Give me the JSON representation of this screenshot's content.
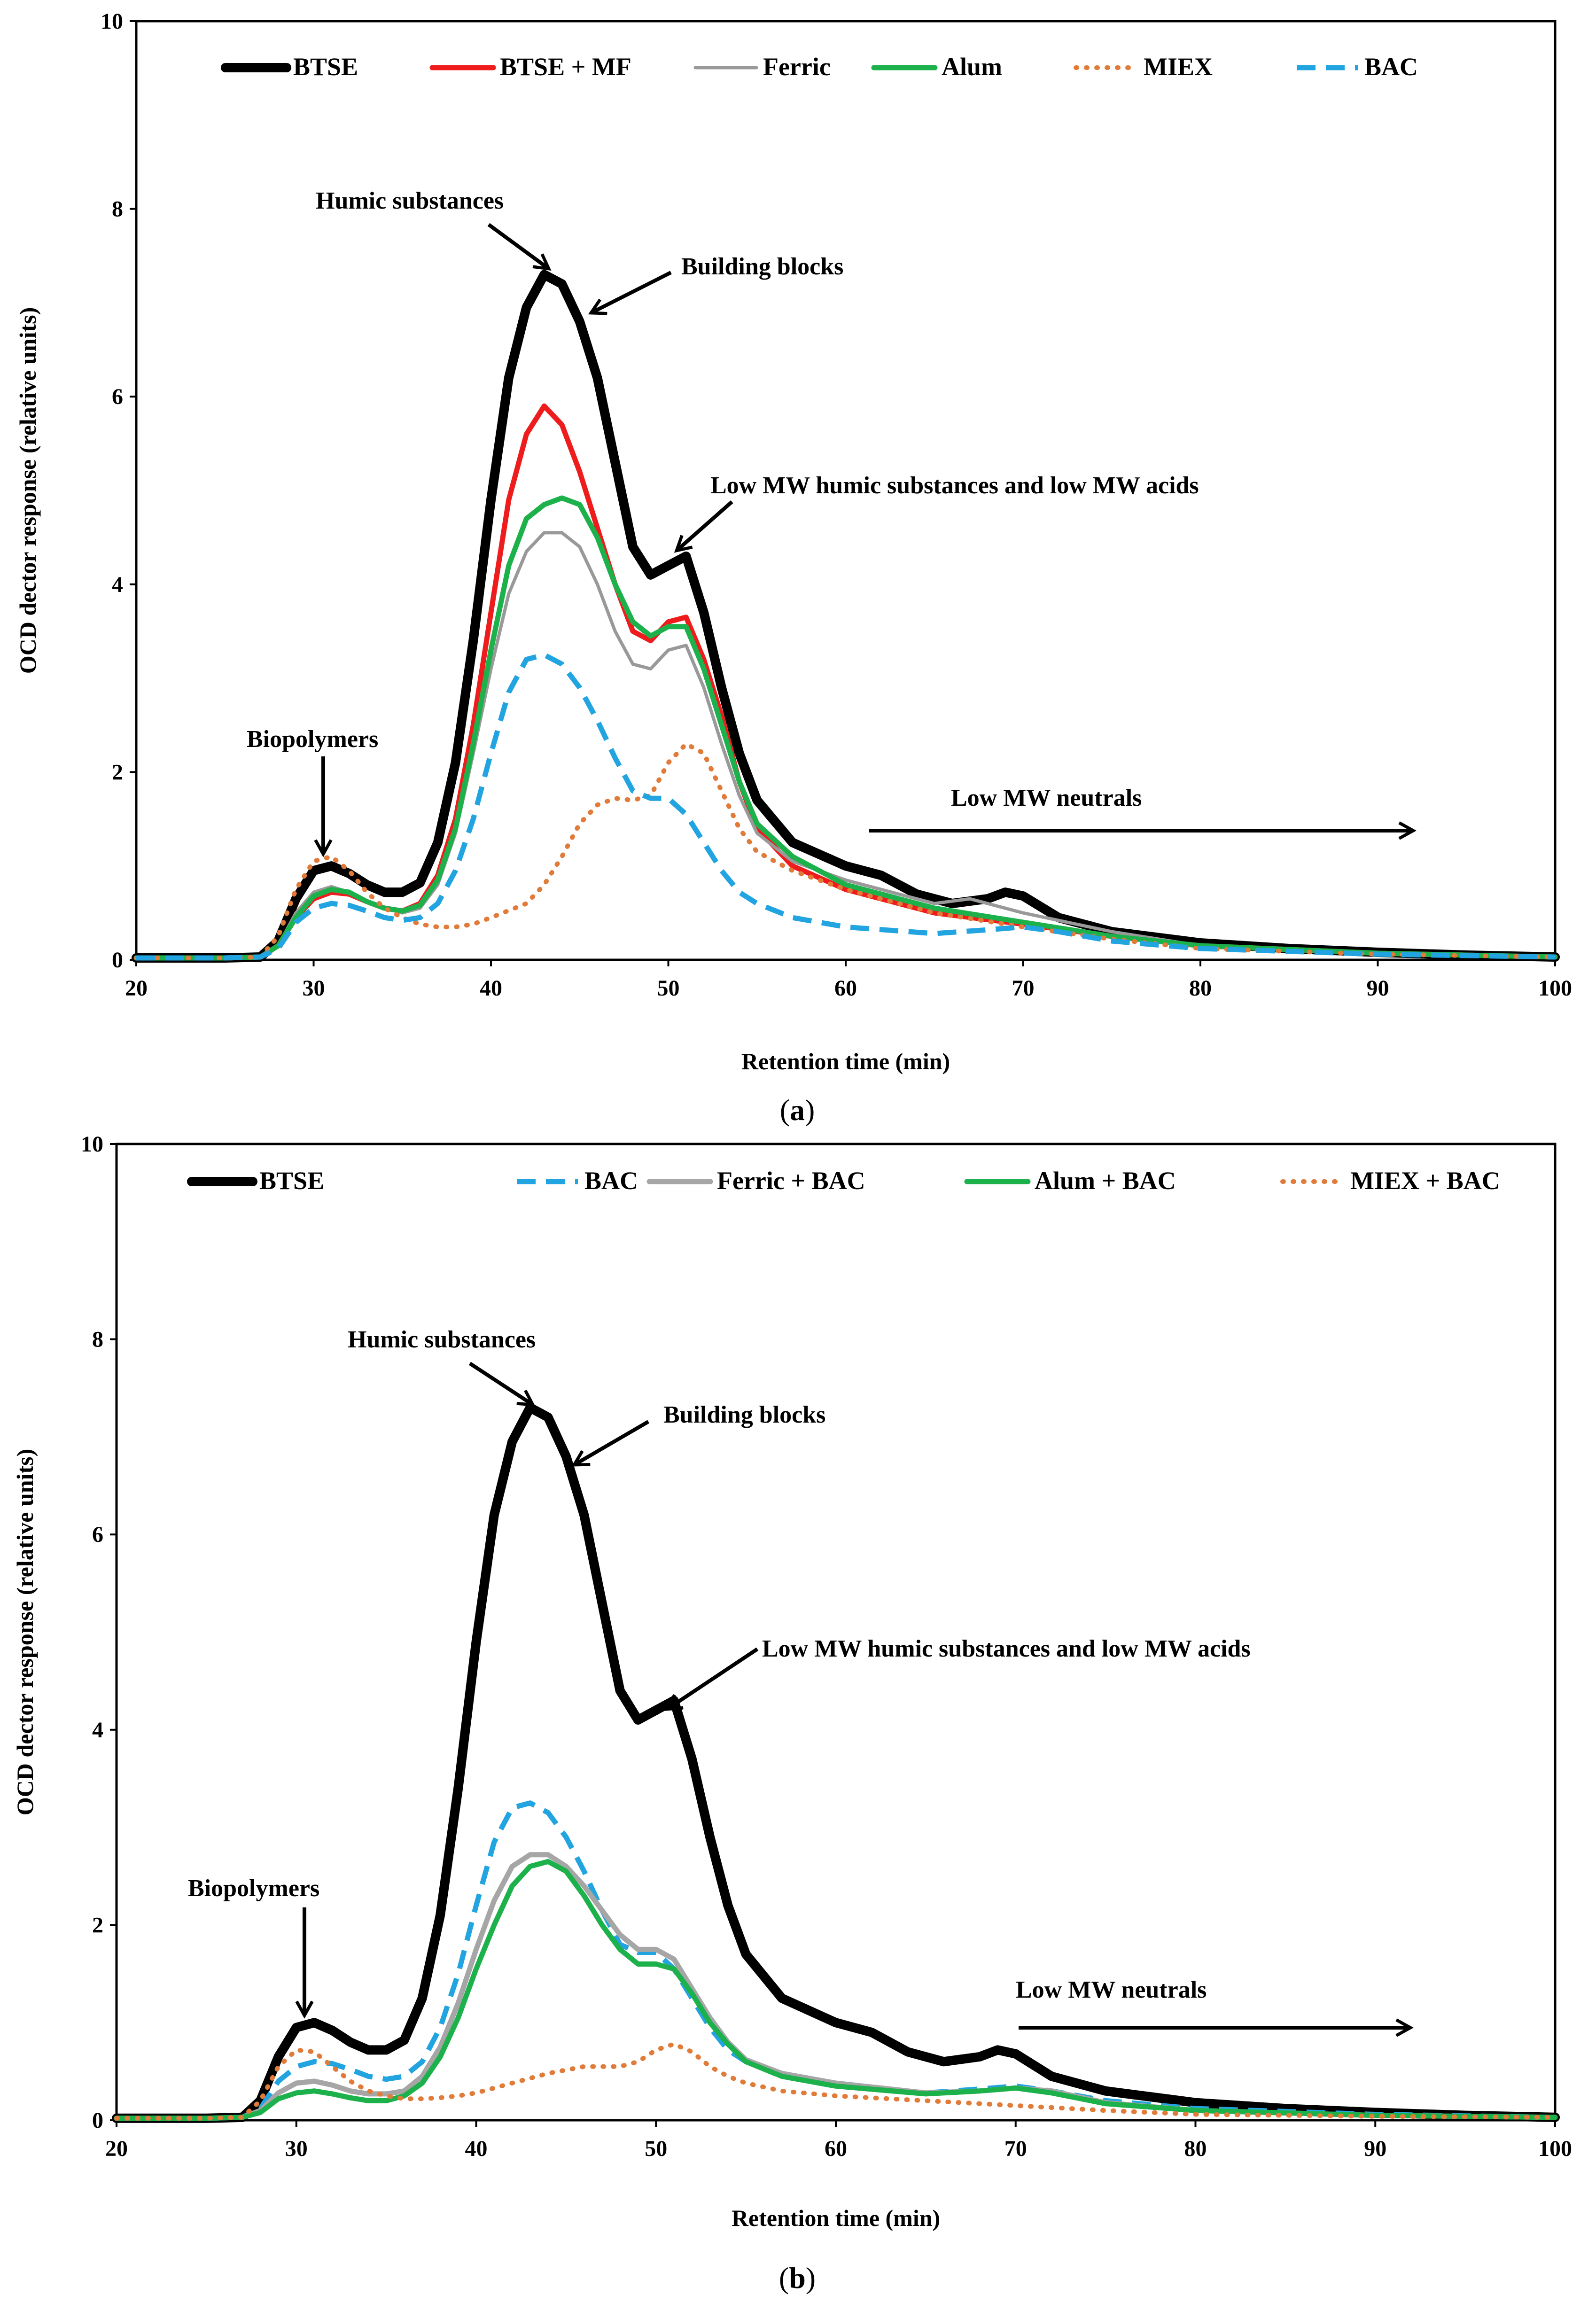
{
  "chart_data": [
    {
      "panel_label": "a",
      "type": "line",
      "xlabel": "Retention time (min)",
      "ylabel": "OCD dector response (relative units)",
      "xlim": [
        20,
        100
      ],
      "ylim": [
        0,
        10
      ],
      "xticks": [
        20,
        30,
        40,
        50,
        60,
        70,
        80,
        90,
        100
      ],
      "yticks": [
        0,
        2,
        4,
        6,
        8,
        10
      ],
      "grid": false,
      "legend_position": "top",
      "series": [
        {
          "name": "BTSE",
          "color": "#000000",
          "style": "solid-thick",
          "x": [
            20,
            25,
            27,
            28,
            29,
            30,
            31,
            32,
            33,
            34,
            35,
            36,
            37,
            38,
            39,
            40,
            41,
            42,
            43,
            44,
            45,
            46,
            47,
            48,
            49,
            50,
            51,
            52,
            53,
            54,
            55,
            57,
            60,
            62,
            64,
            66,
            68,
            69,
            70,
            72,
            75,
            80,
            85,
            90,
            95,
            100
          ],
          "y": [
            0.02,
            0.02,
            0.03,
            0.2,
            0.65,
            0.95,
            1.0,
            0.92,
            0.8,
            0.72,
            0.72,
            0.82,
            1.25,
            2.1,
            3.4,
            4.9,
            6.2,
            6.95,
            7.3,
            7.2,
            6.8,
            6.2,
            5.3,
            4.4,
            4.1,
            4.2,
            4.3,
            3.7,
            2.9,
            2.2,
            1.7,
            1.25,
            1.0,
            0.9,
            0.7,
            0.6,
            0.65,
            0.72,
            0.68,
            0.45,
            0.3,
            0.18,
            0.12,
            0.08,
            0.05,
            0.03
          ]
        },
        {
          "name": "BTSE + MF",
          "color": "#ee1c1c",
          "style": "solid",
          "x": [
            20,
            25,
            27,
            28,
            29,
            30,
            31,
            32,
            33,
            34,
            35,
            36,
            37,
            38,
            39,
            40,
            41,
            42,
            43,
            44,
            45,
            46,
            47,
            48,
            49,
            50,
            51,
            52,
            53,
            54,
            55,
            57,
            60,
            65,
            70,
            75,
            80,
            90,
            100
          ],
          "y": [
            0.02,
            0.02,
            0.03,
            0.15,
            0.45,
            0.65,
            0.72,
            0.7,
            0.62,
            0.55,
            0.52,
            0.6,
            0.9,
            1.5,
            2.5,
            3.7,
            4.9,
            5.6,
            5.9,
            5.7,
            5.2,
            4.6,
            4.0,
            3.5,
            3.4,
            3.6,
            3.65,
            3.2,
            2.6,
            1.9,
            1.4,
            1.0,
            0.75,
            0.5,
            0.38,
            0.25,
            0.15,
            0.07,
            0.03
          ]
        },
        {
          "name": "Ferric",
          "color": "#999999",
          "style": "solid-thin",
          "x": [
            20,
            25,
            27,
            28,
            29,
            30,
            31,
            32,
            33,
            34,
            35,
            36,
            37,
            38,
            39,
            40,
            41,
            42,
            43,
            44,
            45,
            46,
            47,
            48,
            49,
            50,
            51,
            52,
            53,
            54,
            55,
            57,
            60,
            65,
            67,
            70,
            75,
            80,
            90,
            100
          ],
          "y": [
            0.02,
            0.02,
            0.03,
            0.15,
            0.5,
            0.72,
            0.78,
            0.72,
            0.62,
            0.55,
            0.5,
            0.55,
            0.8,
            1.35,
            2.2,
            3.1,
            3.9,
            4.35,
            4.55,
            4.55,
            4.4,
            4.0,
            3.5,
            3.15,
            3.1,
            3.3,
            3.35,
            2.9,
            2.3,
            1.75,
            1.35,
            1.05,
            0.85,
            0.6,
            0.65,
            0.5,
            0.3,
            0.15,
            0.07,
            0.03
          ]
        },
        {
          "name": "Alum",
          "color": "#1db14b",
          "style": "solid",
          "x": [
            20,
            25,
            27,
            28,
            29,
            30,
            31,
            32,
            33,
            34,
            35,
            36,
            37,
            38,
            39,
            40,
            41,
            42,
            43,
            44,
            45,
            46,
            47,
            48,
            49,
            50,
            51,
            52,
            53,
            54,
            55,
            57,
            60,
            65,
            70,
            75,
            80,
            90,
            100
          ],
          "y": [
            0.02,
            0.02,
            0.03,
            0.15,
            0.45,
            0.68,
            0.75,
            0.72,
            0.62,
            0.55,
            0.52,
            0.58,
            0.85,
            1.4,
            2.3,
            3.3,
            4.2,
            4.7,
            4.85,
            4.92,
            4.85,
            4.5,
            4.0,
            3.6,
            3.45,
            3.55,
            3.55,
            3.1,
            2.5,
            1.9,
            1.45,
            1.1,
            0.8,
            0.55,
            0.4,
            0.25,
            0.15,
            0.07,
            0.03
          ]
        },
        {
          "name": "MIEX",
          "color": "#e07b39",
          "style": "dotted",
          "x": [
            20,
            25,
            27,
            28,
            29,
            30,
            31,
            32,
            33,
            34,
            35,
            36,
            37,
            38,
            39,
            40,
            42,
            43,
            44,
            45,
            46,
            47,
            48,
            49,
            50,
            51,
            52,
            53,
            54,
            55,
            57,
            60,
            65,
            70,
            75,
            80,
            90,
            100
          ],
          "y": [
            0.02,
            0.02,
            0.03,
            0.25,
            0.75,
            1.05,
            1.1,
            0.95,
            0.72,
            0.55,
            0.45,
            0.38,
            0.35,
            0.35,
            0.38,
            0.45,
            0.6,
            0.8,
            1.1,
            1.45,
            1.65,
            1.72,
            1.7,
            1.75,
            2.1,
            2.3,
            2.2,
            1.8,
            1.4,
            1.15,
            0.95,
            0.75,
            0.5,
            0.35,
            0.22,
            0.12,
            0.06,
            0.03
          ]
        },
        {
          "name": "BAC",
          "color": "#21a4e0",
          "style": "dashed",
          "x": [
            20,
            25,
            27,
            28,
            29,
            30,
            31,
            32,
            33,
            34,
            35,
            36,
            37,
            38,
            39,
            40,
            41,
            42,
            43,
            44,
            45,
            46,
            47,
            48,
            49,
            50,
            51,
            52,
            53,
            54,
            55,
            57,
            60,
            65,
            68,
            70,
            72,
            75,
            80,
            90,
            100
          ],
          "y": [
            0.02,
            0.02,
            0.03,
            0.12,
            0.4,
            0.55,
            0.6,
            0.58,
            0.52,
            0.45,
            0.42,
            0.45,
            0.6,
            0.95,
            1.5,
            2.2,
            2.85,
            3.2,
            3.25,
            3.15,
            2.9,
            2.55,
            2.15,
            1.8,
            1.72,
            1.72,
            1.55,
            1.25,
            0.95,
            0.72,
            0.6,
            0.45,
            0.35,
            0.28,
            0.32,
            0.35,
            0.3,
            0.2,
            0.12,
            0.06,
            0.03
          ]
        }
      ],
      "annotations": [
        {
          "text": "Biopolymers",
          "x": 30.5,
          "y": 1.0
        },
        {
          "text": "Humic substances",
          "x": 43.3,
          "y": 7.3
        },
        {
          "text": "Building blocks",
          "x": 45.5,
          "y": 6.8
        },
        {
          "text": "Low MW humic substances and low MW acids",
          "x": 50.5,
          "y": 4.3
        },
        {
          "text": "Low MW neutrals",
          "x": 61.5,
          "y": 1.4
        }
      ]
    },
    {
      "panel_label": "b",
      "type": "line",
      "xlabel": "Retention time (min)",
      "ylabel": "OCD dector response (relative units)",
      "xlim": [
        20,
        100
      ],
      "ylim": [
        0,
        10
      ],
      "xticks": [
        20,
        30,
        40,
        50,
        60,
        70,
        80,
        90,
        100
      ],
      "yticks": [
        0,
        2,
        4,
        6,
        8,
        10
      ],
      "grid": false,
      "legend_position": "top",
      "series": [
        {
          "name": "BTSE",
          "color": "#000000",
          "style": "solid-thick",
          "x": [
            20,
            25,
            27,
            28,
            29,
            30,
            31,
            32,
            33,
            34,
            35,
            36,
            37,
            38,
            39,
            40,
            41,
            42,
            43,
            44,
            45,
            46,
            47,
            48,
            49,
            50,
            51,
            52,
            53,
            54,
            55,
            57,
            60,
            62,
            64,
            66,
            68,
            69,
            70,
            72,
            75,
            80,
            85,
            90,
            95,
            100
          ],
          "y": [
            0.02,
            0.02,
            0.03,
            0.2,
            0.65,
            0.95,
            1.0,
            0.92,
            0.8,
            0.72,
            0.72,
            0.82,
            1.25,
            2.1,
            3.4,
            4.9,
            6.2,
            6.95,
            7.3,
            7.2,
            6.8,
            6.2,
            5.3,
            4.4,
            4.1,
            4.2,
            4.3,
            3.7,
            2.9,
            2.2,
            1.7,
            1.25,
            1.0,
            0.9,
            0.7,
            0.6,
            0.65,
            0.72,
            0.68,
            0.45,
            0.3,
            0.18,
            0.12,
            0.08,
            0.05,
            0.03
          ]
        },
        {
          "name": "BAC",
          "color": "#21a4e0",
          "style": "dashed",
          "x": [
            20,
            25,
            27,
            28,
            29,
            30,
            31,
            32,
            33,
            34,
            35,
            36,
            37,
            38,
            39,
            40,
            41,
            42,
            43,
            44,
            45,
            46,
            47,
            48,
            49,
            50,
            51,
            52,
            53,
            54,
            55,
            57,
            60,
            65,
            68,
            70,
            72,
            75,
            80,
            90,
            100
          ],
          "y": [
            0.02,
            0.02,
            0.03,
            0.12,
            0.4,
            0.55,
            0.6,
            0.58,
            0.52,
            0.45,
            0.42,
            0.45,
            0.6,
            0.95,
            1.5,
            2.2,
            2.85,
            3.2,
            3.25,
            3.15,
            2.9,
            2.55,
            2.15,
            1.8,
            1.72,
            1.72,
            1.55,
            1.25,
            0.95,
            0.72,
            0.6,
            0.45,
            0.35,
            0.28,
            0.32,
            0.35,
            0.3,
            0.2,
            0.12,
            0.06,
            0.03
          ]
        },
        {
          "name": "Ferric + BAC",
          "color": "#a6a6a6",
          "style": "solid",
          "x": [
            20,
            25,
            27,
            28,
            29,
            30,
            31,
            32,
            33,
            34,
            35,
            36,
            37,
            38,
            39,
            40,
            41,
            42,
            43,
            44,
            45,
            46,
            47,
            48,
            49,
            50,
            51,
            52,
            53,
            54,
            55,
            57,
            60,
            65,
            68,
            70,
            72,
            75,
            80,
            90,
            100
          ],
          "y": [
            0.02,
            0.02,
            0.03,
            0.1,
            0.28,
            0.38,
            0.4,
            0.36,
            0.3,
            0.27,
            0.27,
            0.3,
            0.45,
            0.75,
            1.2,
            1.75,
            2.25,
            2.6,
            2.72,
            2.72,
            2.6,
            2.4,
            2.15,
            1.9,
            1.75,
            1.75,
            1.65,
            1.35,
            1.05,
            0.8,
            0.62,
            0.48,
            0.38,
            0.28,
            0.3,
            0.33,
            0.3,
            0.18,
            0.1,
            0.05,
            0.03
          ]
        },
        {
          "name": "Alum + BAC",
          "color": "#1db14b",
          "style": "solid",
          "x": [
            20,
            25,
            27,
            28,
            29,
            30,
            31,
            32,
            33,
            34,
            35,
            36,
            37,
            38,
            39,
            40,
            41,
            42,
            43,
            44,
            45,
            46,
            47,
            48,
            49,
            50,
            51,
            52,
            53,
            54,
            55,
            57,
            60,
            65,
            68,
            70,
            72,
            75,
            80,
            90,
            100
          ],
          "y": [
            0.02,
            0.02,
            0.03,
            0.08,
            0.22,
            0.28,
            0.3,
            0.27,
            0.23,
            0.2,
            0.2,
            0.25,
            0.38,
            0.65,
            1.05,
            1.55,
            2.0,
            2.4,
            2.6,
            2.65,
            2.55,
            2.3,
            2.0,
            1.75,
            1.6,
            1.6,
            1.55,
            1.3,
            1.0,
            0.78,
            0.6,
            0.45,
            0.35,
            0.27,
            0.3,
            0.33,
            0.28,
            0.17,
            0.1,
            0.05,
            0.03
          ]
        },
        {
          "name": "MIEX + BAC",
          "color": "#e07b39",
          "style": "dotted",
          "x": [
            20,
            25,
            27,
            28,
            29,
            30,
            31,
            32,
            33,
            34,
            35,
            36,
            37,
            38,
            39,
            40,
            42,
            44,
            46,
            48,
            49,
            50,
            51,
            52,
            53,
            54,
            55,
            57,
            60,
            65,
            70,
            75,
            80,
            90,
            100
          ],
          "y": [
            0.02,
            0.02,
            0.03,
            0.2,
            0.55,
            0.72,
            0.7,
            0.55,
            0.4,
            0.3,
            0.25,
            0.22,
            0.22,
            0.23,
            0.25,
            0.28,
            0.38,
            0.48,
            0.55,
            0.55,
            0.6,
            0.72,
            0.78,
            0.7,
            0.55,
            0.45,
            0.38,
            0.3,
            0.25,
            0.2,
            0.15,
            0.1,
            0.06,
            0.04,
            0.03
          ]
        }
      ],
      "annotations": [
        {
          "text": "Biopolymers",
          "x": 30.5,
          "y": 1.0
        },
        {
          "text": "Humic substances",
          "x": 43.3,
          "y": 7.3
        },
        {
          "text": "Building blocks",
          "x": 45.5,
          "y": 6.8
        },
        {
          "text": "Low MW humic substances and low MW acids",
          "x": 50.5,
          "y": 4.3
        },
        {
          "text": "Low MW neutrals",
          "x": 68,
          "y": 1.4
        }
      ]
    }
  ]
}
